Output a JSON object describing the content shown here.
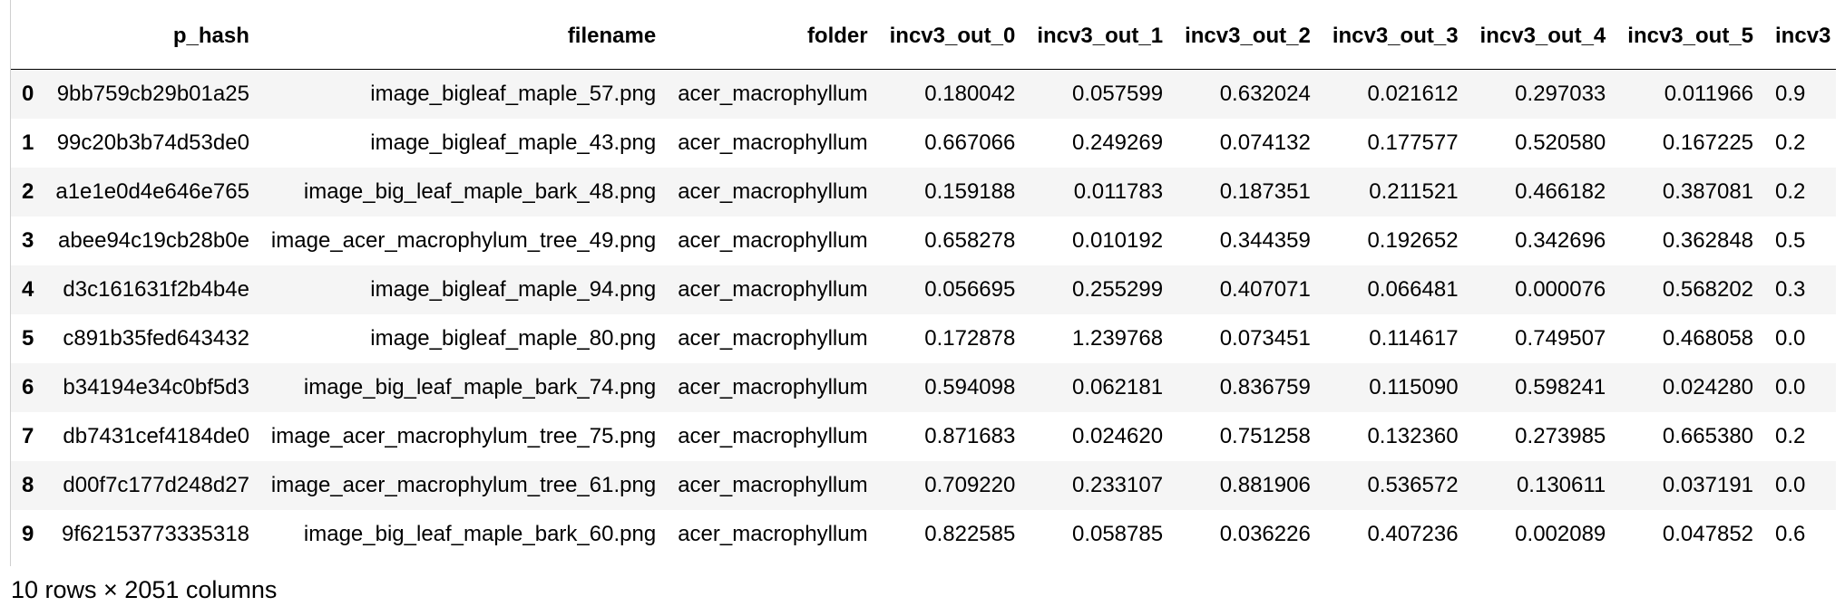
{
  "table": {
    "columns": [
      "p_hash",
      "filename",
      "folder",
      "incv3_out_0",
      "incv3_out_1",
      "incv3_out_2",
      "incv3_out_3",
      "incv3_out_4",
      "incv3_out_5",
      "incv3"
    ],
    "rows": [
      {
        "index": "0",
        "cells": [
          "9bb759cb29b01a25",
          "image_bigleaf_maple_57.png",
          "acer_macrophyllum",
          "0.180042",
          "0.057599",
          "0.632024",
          "0.021612",
          "0.297033",
          "0.011966",
          "0.9"
        ]
      },
      {
        "index": "1",
        "cells": [
          "99c20b3b74d53de0",
          "image_bigleaf_maple_43.png",
          "acer_macrophyllum",
          "0.667066",
          "0.249269",
          "0.074132",
          "0.177577",
          "0.520580",
          "0.167225",
          "0.2"
        ]
      },
      {
        "index": "2",
        "cells": [
          "a1e1e0d4e646e765",
          "image_big_leaf_maple_bark_48.png",
          "acer_macrophyllum",
          "0.159188",
          "0.011783",
          "0.187351",
          "0.211521",
          "0.466182",
          "0.387081",
          "0.2"
        ]
      },
      {
        "index": "3",
        "cells": [
          "abee94c19cb28b0e",
          "image_acer_macrophylum_tree_49.png",
          "acer_macrophyllum",
          "0.658278",
          "0.010192",
          "0.344359",
          "0.192652",
          "0.342696",
          "0.362848",
          "0.5"
        ]
      },
      {
        "index": "4",
        "cells": [
          "d3c161631f2b4b4e",
          "image_bigleaf_maple_94.png",
          "acer_macrophyllum",
          "0.056695",
          "0.255299",
          "0.407071",
          "0.066481",
          "0.000076",
          "0.568202",
          "0.3"
        ]
      },
      {
        "index": "5",
        "cells": [
          "c891b35fed643432",
          "image_bigleaf_maple_80.png",
          "acer_macrophyllum",
          "0.172878",
          "1.239768",
          "0.073451",
          "0.114617",
          "0.749507",
          "0.468058",
          "0.0"
        ]
      },
      {
        "index": "6",
        "cells": [
          "b34194e34c0bf5d3",
          "image_big_leaf_maple_bark_74.png",
          "acer_macrophyllum",
          "0.594098",
          "0.062181",
          "0.836759",
          "0.115090",
          "0.598241",
          "0.024280",
          "0.0"
        ]
      },
      {
        "index": "7",
        "cells": [
          "db7431cef4184de0",
          "image_acer_macrophylum_tree_75.png",
          "acer_macrophyllum",
          "0.871683",
          "0.024620",
          "0.751258",
          "0.132360",
          "0.273985",
          "0.665380",
          "0.2"
        ]
      },
      {
        "index": "8",
        "cells": [
          "d00f7c177d248d27",
          "image_acer_macrophylum_tree_61.png",
          "acer_macrophyllum",
          "0.709220",
          "0.233107",
          "0.881906",
          "0.536572",
          "0.130611",
          "0.037191",
          "0.0"
        ]
      },
      {
        "index": "9",
        "cells": [
          "9f62153773335318",
          "image_big_leaf_maple_bark_60.png",
          "acer_macrophyllum",
          "0.822585",
          "0.058785",
          "0.036226",
          "0.407236",
          "0.002089",
          "0.047852",
          "0.6"
        ]
      }
    ]
  },
  "footer": {
    "summary": "10 rows × 2051 columns"
  },
  "colors": {
    "stripe": "#f5f5f5",
    "header_rule": "#000000",
    "left_border": "#cfcfcf"
  }
}
